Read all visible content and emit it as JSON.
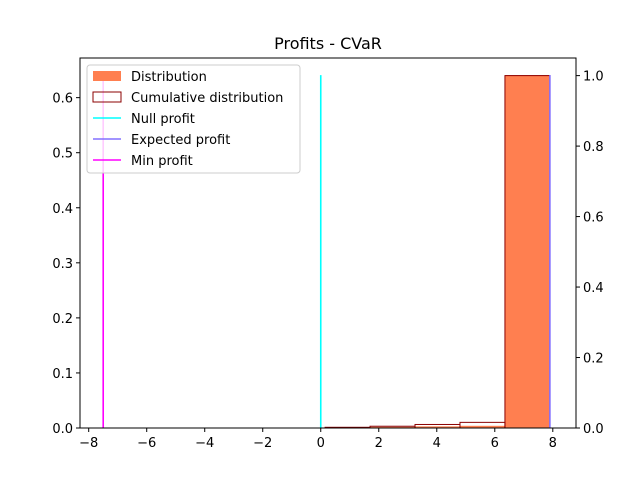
{
  "chart_data": {
    "type": "bar",
    "title": "Profits - CVaR",
    "xlabel": "",
    "ylabel": "",
    "xlim": [
      -8.3,
      8.8
    ],
    "ylim": [
      0,
      0.672
    ],
    "y2lim": [
      0,
      1.05
    ],
    "x_ticks": [
      -8,
      -6,
      -4,
      -2,
      0,
      2,
      4,
      6,
      8
    ],
    "y_ticks": [
      0.0,
      0.1,
      0.2,
      0.3,
      0.4,
      0.5,
      0.6
    ],
    "y2_ticks": [
      0.0,
      0.2,
      0.4,
      0.6,
      0.8,
      1.0
    ],
    "x_tick_labels": [
      "−8",
      "−6",
      "−4",
      "−2",
      "0",
      "2",
      "4",
      "6",
      "8"
    ],
    "y_tick_labels": [
      "0.0",
      "0.1",
      "0.2",
      "0.3",
      "0.4",
      "0.5",
      "0.6"
    ],
    "y2_tick_labels": [
      "0.0",
      "0.2",
      "0.4",
      "0.6",
      "0.8",
      "1.0"
    ],
    "bin_edges": [
      -7.6,
      -6.05,
      -4.5,
      -2.95,
      -1.4,
      0.15,
      1.7,
      3.25,
      4.8,
      6.35,
      7.9
    ],
    "distribution": [
      0,
      0,
      0,
      0,
      0,
      0.001,
      0.002,
      0.003,
      0.004,
      0.641
    ],
    "cumulative": [
      0,
      0,
      0,
      0,
      0,
      0.002,
      0.005,
      0.01,
      0.016,
      1.0
    ],
    "null_profit": 0.0,
    "expected_profit": 7.9,
    "min_profit": -7.5,
    "vline_top": 0.641,
    "grid": false,
    "legend_position": "upper-left",
    "legend": [
      {
        "label": "Distribution",
        "kind": "patch-filled",
        "color": "#ff7f50"
      },
      {
        "label": "Cumulative distribution",
        "kind": "patch-outline",
        "color": "#8b0000"
      },
      {
        "label": "Null profit",
        "kind": "line",
        "color": "#00ffff"
      },
      {
        "label": "Expected profit",
        "kind": "line",
        "color": "#8470ff"
      },
      {
        "label": "Min profit",
        "kind": "line",
        "color": "#ff00ff"
      }
    ],
    "colors": {
      "distribution": "#ff7f50",
      "cumulative": "#8b0000",
      "null_profit": "#00ffff",
      "expected_profit": "#8470ff",
      "min_profit": "#ff00ff"
    }
  }
}
